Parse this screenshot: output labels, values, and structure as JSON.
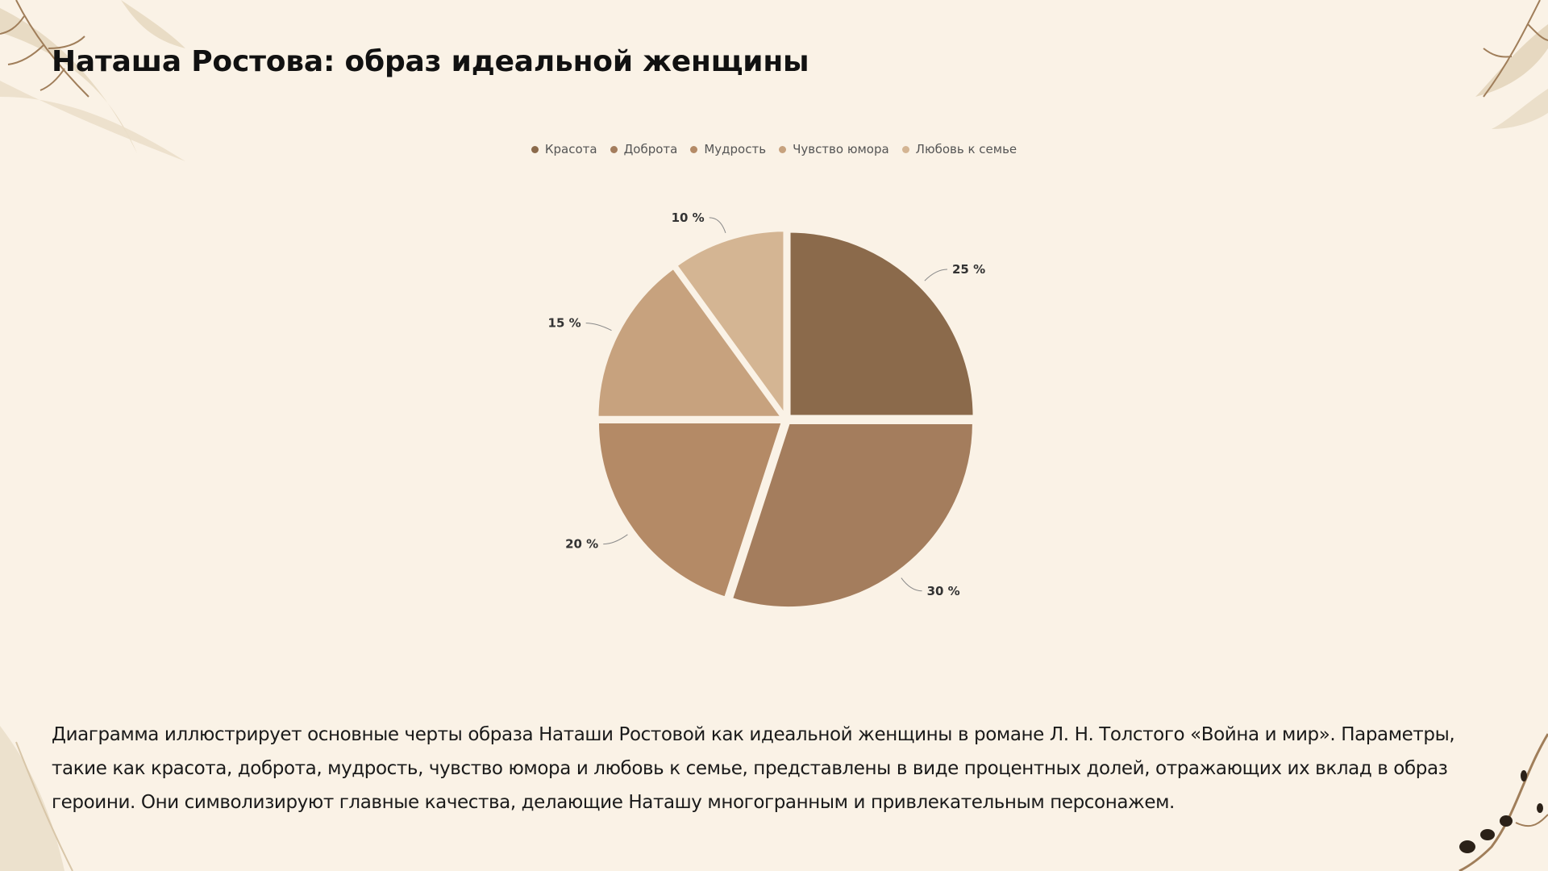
{
  "slide": {
    "title": "Наташа Ростова: образ идеальной женщины",
    "description": "Диаграмма иллюстрирует основные черты образа Наташи Ростовой как идеальной женщины в романе Л. Н. Толстого «Война и мир». Параметры, такие как красота, доброта, мудрость, чувство юмора и любовь к семье, представлены в виде процентных долей, отражающих их вклад в образ героини. Они символизируют главные качества, делающие Наташу многогранным и привлекательным персонажем."
  },
  "chart_data": {
    "type": "pie",
    "legend_position": "top",
    "categories": [
      "Красота",
      "Доброта",
      "Мудрость",
      "Чувство юмора",
      "Любовь к семье"
    ],
    "values": [
      25,
      30,
      20,
      15,
      10
    ],
    "data_labels": [
      "25 %",
      "30 %",
      "20 %",
      "15 %",
      "10 %"
    ],
    "colors": [
      "#8b6a4b",
      "#a47d5d",
      "#b48a66",
      "#c7a27e",
      "#d4b593"
    ]
  },
  "theme": {
    "background": "#faf2e6",
    "leaf_color": "#e6d8c0",
    "branch_color": "#a07e5a"
  }
}
